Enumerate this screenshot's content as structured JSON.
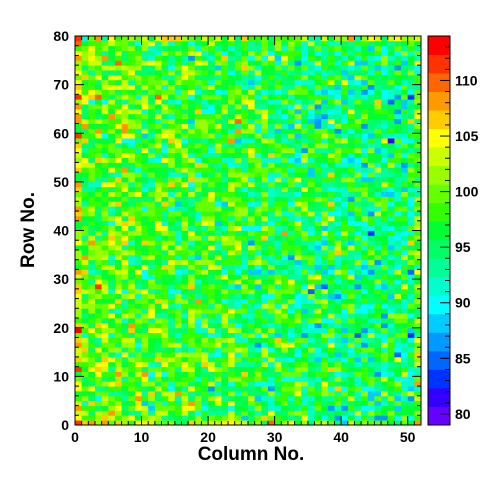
{
  "chart_data": {
    "type": "heatmap",
    "title": "",
    "xlabel": "Column No.",
    "ylabel": "Row No.",
    "xlim": [
      0,
      52
    ],
    "ylim": [
      0,
      80
    ],
    "x_bins": 52,
    "y_bins": 80,
    "x_ticks": [
      0,
      10,
      20,
      30,
      40,
      50
    ],
    "y_ticks": [
      0,
      10,
      20,
      30,
      40,
      50,
      60,
      70,
      80
    ],
    "z_range": [
      79,
      114
    ],
    "z_ticks": [
      80,
      85,
      90,
      95,
      100,
      105,
      110
    ],
    "palette": [
      "#6600ff",
      "#3300ff",
      "#0033ff",
      "#0066ff",
      "#0099ff",
      "#00ccff",
      "#00ffff",
      "#00ffcc",
      "#00ff99",
      "#00ff66",
      "#00ff33",
      "#33ff00",
      "#66ff00",
      "#99ff00",
      "#ccff00",
      "#ffff00",
      "#ffcc00",
      "#ff9900",
      "#ff6600",
      "#ff3300",
      "#ff0000"
    ],
    "description_mean": 98,
    "values_encoding": "per-cell counts shown as colored bins; mean near 98, spread roughly 80 to 114"
  }
}
